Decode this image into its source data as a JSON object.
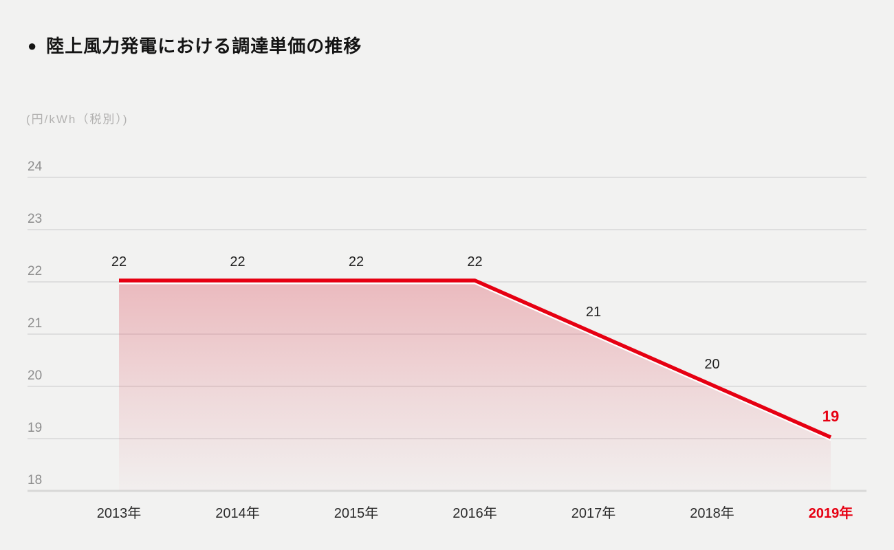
{
  "title": {
    "bullet": "●",
    "text": "陸上風力発電における調達単価の推移"
  },
  "unit_label": "(円/kWh（税別）)",
  "colors": {
    "background": "#f2f2f1",
    "accent_red": "#e60012",
    "grid_line": "#dedede",
    "axis_baseline": "#d8d8d7",
    "y_tick_text": "#8c8c8c",
    "x_tick_text": "#2b2b2b",
    "unit_text": "#b3b2b1",
    "data_label_text": "#1f1f1f",
    "area_fill_top": "rgba(220,70,85,0.32)",
    "area_fill_mid": "rgba(220,70,85,0.14)",
    "area_fill_bottom": "rgba(220,70,85,0.02)",
    "line_white_edge": "rgba(255,255,255,0.95)"
  },
  "chart_data": {
    "type": "area",
    "title": "陸上風力発電における調達単価の推移",
    "ylabel": "(円/kWh（税別）)",
    "categories": [
      "2013年",
      "2014年",
      "2015年",
      "2016年",
      "2017年",
      "2018年",
      "2019年"
    ],
    "values": [
      22,
      22,
      22,
      22,
      21,
      20,
      19
    ],
    "data_labels": [
      "22",
      "22",
      "22",
      "22",
      "21",
      "20",
      "19"
    ],
    "yticks": [
      24,
      23,
      22,
      21,
      20,
      19,
      18
    ],
    "ylim": [
      18,
      24
    ],
    "grid": true,
    "legend": false,
    "highlight_last_point": true
  }
}
